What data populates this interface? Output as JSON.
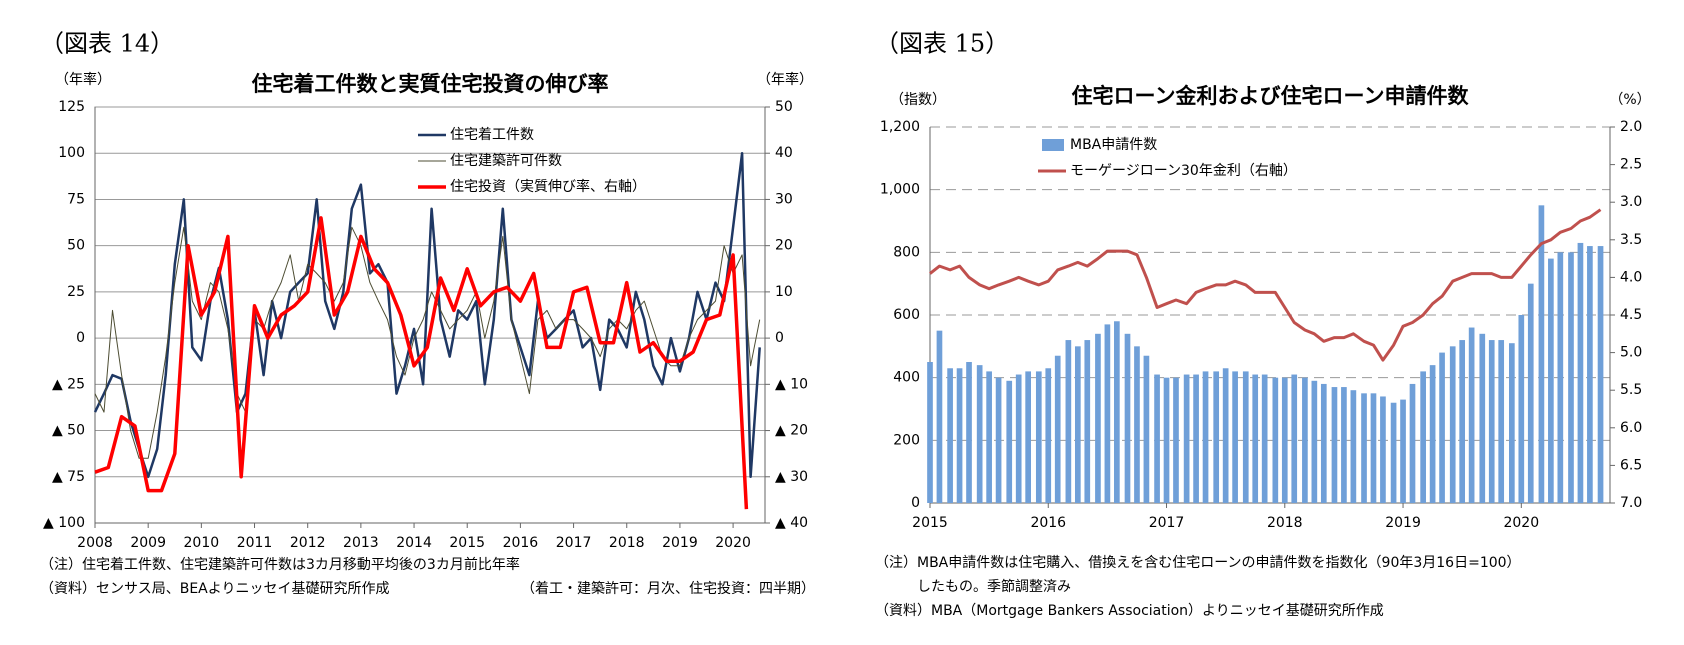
{
  "chart_data": [
    {
      "type": "line",
      "figure_label": "（図表 14）",
      "title": "住宅着工件数と実質住宅投資の伸び率",
      "ylabel": "（年率）",
      "y2label": "（年率）",
      "grid": true,
      "legend": "upper right",
      "xlim": [
        2008,
        2020.6
      ],
      "xticks": [
        2008,
        2009,
        2010,
        2011,
        2012,
        2013,
        2014,
        2015,
        2016,
        2017,
        2018,
        2019,
        2020
      ],
      "ylim": [
        -100,
        125
      ],
      "yticks": [
        125,
        100,
        75,
        50,
        25,
        0,
        {
          "value": -25,
          "label": "▲ 25"
        },
        {
          "value": -50,
          "label": "▲ 50"
        },
        {
          "value": -75,
          "label": "▲ 75"
        },
        {
          "value": -100,
          "label": "▲ 100"
        }
      ],
      "y2lim": [
        -40,
        50
      ],
      "y2ticks": [
        50,
        40,
        30,
        20,
        10,
        0,
        {
          "value": -10,
          "label": "▲ 10"
        },
        {
          "value": -20,
          "label": "▲ 20"
        },
        {
          "value": -30,
          "label": "▲ 30"
        },
        {
          "value": -40,
          "label": "▲ 40"
        }
      ],
      "x": [
        2008,
        2008.17,
        2008.33,
        2008.5,
        2008.67,
        2008.83,
        2009,
        2009.17,
        2009.33,
        2009.5,
        2009.67,
        2009.83,
        2010,
        2010.17,
        2010.33,
        2010.5,
        2010.67,
        2010.83,
        2011,
        2011.17,
        2011.33,
        2011.5,
        2011.67,
        2011.83,
        2012,
        2012.17,
        2012.33,
        2012.5,
        2012.67,
        2012.83,
        2013,
        2013.17,
        2013.33,
        2013.5,
        2013.67,
        2013.83,
        2014,
        2014.17,
        2014.33,
        2014.5,
        2014.67,
        2014.83,
        2015,
        2015.17,
        2015.33,
        2015.5,
        2015.67,
        2015.83,
        2016,
        2016.17,
        2016.33,
        2016.5,
        2016.67,
        2016.83,
        2017,
        2017.17,
        2017.33,
        2017.5,
        2017.67,
        2017.83,
        2018,
        2018.17,
        2018.33,
        2018.5,
        2018.67,
        2018.83,
        2019,
        2019.17,
        2019.33,
        2019.5,
        2019.67,
        2019.83,
        2020,
        2020.17,
        2020.33,
        2020.5
      ],
      "series": [
        {
          "name": "住宅着工件数",
          "color": "#1f3864",
          "width": 2.5,
          "values": [
            -40,
            -30,
            -20,
            -22,
            -45,
            -60,
            -75,
            -60,
            -20,
            40,
            75,
            -5,
            -12,
            20,
            38,
            10,
            -40,
            -30,
            15,
            -20,
            20,
            0,
            25,
            30,
            35,
            75,
            20,
            5,
            25,
            70,
            83,
            35,
            40,
            30,
            -30,
            -15,
            5,
            -25,
            70,
            10,
            -10,
            15,
            10,
            20,
            -25,
            10,
            70,
            10,
            -5,
            -20,
            20,
            0,
            5,
            10,
            15,
            -5,
            0,
            -28,
            10,
            5,
            -5,
            25,
            10,
            -15,
            -25,
            0,
            -18,
            0,
            25,
            10,
            30,
            20,
            60,
            100,
            -75,
            -5
          ]
        },
        {
          "name": "住宅建築許可件数",
          "color": "#4d4d33",
          "width": 1,
          "values": [
            -30,
            -40,
            15,
            -20,
            -50,
            -65,
            -65,
            -40,
            -10,
            30,
            60,
            20,
            10,
            30,
            25,
            5,
            -30,
            -40,
            10,
            5,
            20,
            30,
            45,
            20,
            40,
            35,
            30,
            20,
            30,
            60,
            50,
            30,
            20,
            10,
            -10,
            -20,
            0,
            10,
            25,
            15,
            5,
            10,
            15,
            25,
            0,
            20,
            55,
            10,
            -10,
            -30,
            10,
            15,
            5,
            10,
            10,
            5,
            0,
            -10,
            5,
            10,
            5,
            15,
            20,
            5,
            -10,
            -15,
            -15,
            0,
            10,
            15,
            20,
            50,
            35,
            45,
            -15,
            10
          ]
        },
        {
          "name": "住宅投資（実質伸び率、右軸）",
          "color": "#ff0000",
          "width": 3.5,
          "axis": "y2",
          "x": [
            2008,
            2008.25,
            2008.5,
            2008.75,
            2009,
            2009.25,
            2009.5,
            2009.75,
            2010,
            2010.25,
            2010.5,
            2010.75,
            2011,
            2011.25,
            2011.5,
            2011.75,
            2012,
            2012.25,
            2012.5,
            2012.75,
            2013,
            2013.25,
            2013.5,
            2013.75,
            2014,
            2014.25,
            2014.5,
            2014.75,
            2015,
            2015.25,
            2015.5,
            2015.75,
            2016,
            2016.25,
            2016.5,
            2016.75,
            2017,
            2017.25,
            2017.5,
            2017.75,
            2018,
            2018.25,
            2018.5,
            2018.75,
            2019,
            2019.25,
            2019.5,
            2019.75,
            2020,
            2020.25
          ],
          "values": [
            -29,
            -28,
            -17,
            -19,
            -33,
            -33,
            -25,
            20,
            5,
            10,
            22,
            -30,
            7,
            0,
            5,
            7,
            10,
            26,
            5,
            10,
            22,
            15,
            12,
            5,
            -6,
            -2,
            13,
            6,
            15,
            7,
            10,
            11,
            8,
            14,
            -2,
            -2,
            10,
            11,
            -1,
            -1,
            12,
            -3,
            -1,
            -5,
            -5,
            -3,
            4,
            5,
            18,
            -37
          ]
        }
      ],
      "notes": [
        "（注）住宅着工件数、住宅建築許可件数は3カ月移動平均後の3カ月前比年率",
        "（資料）センサス局、BEAよりニッセイ基礎研究所作成"
      ],
      "note_right": "（着工・建築許可：月次、住宅投資：四半期）"
    },
    {
      "type": "bar",
      "figure_label": "（図表 15）",
      "title": "住宅ローン金利および住宅ローン申請件数",
      "ylabel": "（指数）",
      "y2label": "（%）",
      "grid": true,
      "legend": "upper left",
      "xlim": [
        2015,
        2020.75
      ],
      "xticks": [
        2015,
        2016,
        2017,
        2018,
        2019,
        2020
      ],
      "ylim": [
        0,
        1200
      ],
      "yticks": [
        {
          "value": 1200,
          "label": "1,200"
        },
        {
          "value": 1000,
          "label": "1,000"
        },
        800,
        600,
        400,
        200,
        0
      ],
      "y2lim": [
        2,
        7
      ],
      "y2_reverse": true,
      "y2ticks": [
        {
          "value": 2,
          "label": "2.0"
        },
        2.5,
        {
          "value": 3,
          "label": "3.0"
        },
        3.5,
        {
          "value": 4,
          "label": "4.0"
        },
        4.5,
        {
          "value": 5,
          "label": "5.0"
        },
        5.5,
        {
          "value": 6,
          "label": "6.0"
        },
        6.5,
        {
          "value": 7,
          "label": "7.0"
        }
      ],
      "x": [
        2015,
        2015.08,
        2015.17,
        2015.25,
        2015.33,
        2015.42,
        2015.5,
        2015.58,
        2015.67,
        2015.75,
        2015.83,
        2015.92,
        2016,
        2016.08,
        2016.17,
        2016.25,
        2016.33,
        2016.42,
        2016.5,
        2016.58,
        2016.67,
        2016.75,
        2016.83,
        2016.92,
        2017,
        2017.08,
        2017.17,
        2017.25,
        2017.33,
        2017.42,
        2017.5,
        2017.58,
        2017.67,
        2017.75,
        2017.83,
        2017.92,
        2018,
        2018.08,
        2018.17,
        2018.25,
        2018.33,
        2018.42,
        2018.5,
        2018.58,
        2018.67,
        2018.75,
        2018.83,
        2018.92,
        2019,
        2019.08,
        2019.17,
        2019.25,
        2019.33,
        2019.42,
        2019.5,
        2019.58,
        2019.67,
        2019.75,
        2019.83,
        2019.92,
        2020,
        2020.08,
        2020.17,
        2020.25,
        2020.33,
        2020.42,
        2020.5,
        2020.58,
        2020.67
      ],
      "series": [
        {
          "name": "MBA申請件数",
          "color": "#6f9fd8",
          "values": [
            450,
            550,
            430,
            430,
            450,
            440,
            420,
            400,
            390,
            410,
            420,
            420,
            430,
            470,
            520,
            500,
            520,
            540,
            570,
            580,
            540,
            500,
            470,
            410,
            400,
            400,
            410,
            410,
            420,
            420,
            430,
            420,
            420,
            410,
            410,
            400,
            400,
            410,
            400,
            390,
            380,
            370,
            370,
            360,
            350,
            350,
            340,
            320,
            330,
            380,
            420,
            440,
            480,
            500,
            520,
            560,
            540,
            520,
            520,
            510,
            600,
            700,
            950,
            780,
            800,
            800,
            830,
            820,
            820
          ]
        },
        {
          "name": "モーゲージローン30年金利（右軸）",
          "color": "#c0504d",
          "type": "line",
          "axis": "y2",
          "width": 3,
          "values": [
            3.95,
            3.85,
            3.9,
            3.85,
            4.0,
            4.1,
            4.15,
            4.1,
            4.05,
            4.0,
            4.05,
            4.1,
            4.05,
            3.9,
            3.85,
            3.8,
            3.85,
            3.75,
            3.65,
            3.65,
            3.65,
            3.7,
            4.0,
            4.4,
            4.35,
            4.3,
            4.35,
            4.2,
            4.15,
            4.1,
            4.1,
            4.05,
            4.1,
            4.2,
            4.2,
            4.2,
            4.4,
            4.6,
            4.7,
            4.75,
            4.85,
            4.8,
            4.8,
            4.75,
            4.85,
            4.9,
            5.1,
            4.9,
            4.65,
            4.6,
            4.5,
            4.35,
            4.25,
            4.05,
            4.0,
            3.95,
            3.95,
            3.95,
            4.0,
            4.0,
            3.85,
            3.7,
            3.55,
            3.5,
            3.4,
            3.35,
            3.25,
            3.2,
            3.1
          ]
        }
      ],
      "notes": [
        "（注）MBA申請件数は住宅購入、借換えを含む住宅ローンの申請件数を指数化（90年3月16日=100）",
        "　　　したもの。季節調整済み",
        "（資料）MBA（Mortgage Bankers Association）よりニッセイ基礎研究所作成"
      ]
    }
  ]
}
